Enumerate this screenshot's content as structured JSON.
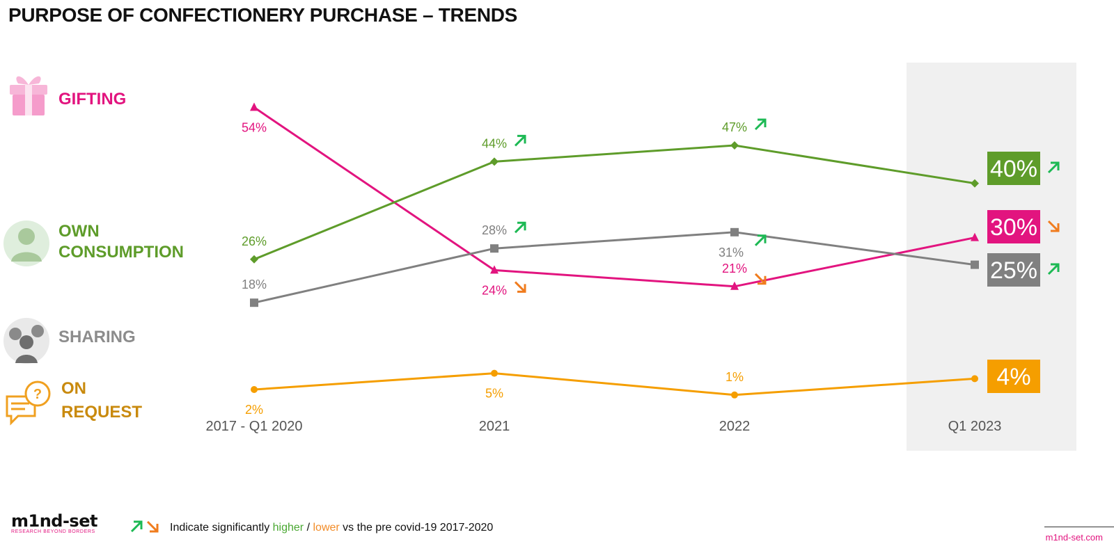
{
  "title": "PURPOSE OF CONFECTIONERY PURCHASE – TRENDS",
  "categories_legend": [
    {
      "line1": "GIFTING",
      "line2": "",
      "icon": "gift-icon",
      "color": "#e2147f"
    },
    {
      "line1": "OWN",
      "line2": "CONSUMPTION",
      "icon": "person-icon",
      "color": "#5e9c2a"
    },
    {
      "line1": "SHARING",
      "line2": "",
      "icon": "group-icon",
      "color": "#8c8c8c"
    },
    {
      "line1": "ON",
      "line2": "REQUEST",
      "icon": "question-speech-icon",
      "color": "#c98a0e"
    }
  ],
  "chart_data": {
    "type": "line",
    "categories": [
      "2017 - Q1 2020",
      "2021",
      "2022",
      "Q1 2023"
    ],
    "highlighted_category": "Q1 2023",
    "series": [
      {
        "name": "GIFTING",
        "color": "#e2147f",
        "marker": "triangle",
        "values": [
          54,
          24,
          21,
          30
        ],
        "labels": [
          "54%",
          "24%",
          "21%",
          "30%"
        ],
        "significance": [
          null,
          "lower",
          "lower",
          "lower"
        ]
      },
      {
        "name": "OWN CONSUMPTION",
        "color": "#5e9c2a",
        "marker": "diamond",
        "values": [
          26,
          44,
          47,
          40
        ],
        "labels": [
          "26%",
          "44%",
          "47%",
          "40%"
        ],
        "significance": [
          null,
          "higher",
          "higher",
          "higher"
        ]
      },
      {
        "name": "SHARING",
        "color": "#808080",
        "marker": "square",
        "values": [
          18,
          28,
          31,
          25
        ],
        "labels": [
          "18%",
          "28%",
          "31%",
          "25%"
        ],
        "significance": [
          null,
          "higher",
          "higher",
          "higher"
        ]
      },
      {
        "name": "ON REQUEST",
        "color": "#f59e00",
        "marker": "circle",
        "values": [
          2,
          5,
          1,
          4
        ],
        "labels": [
          "2%",
          "5%",
          "1%",
          "4%"
        ],
        "significance": [
          null,
          null,
          null,
          null
        ]
      }
    ],
    "colors": {
      "higher": "#1db954",
      "lower": "#f07c1e"
    }
  },
  "footer": {
    "logo": "m1nd-set",
    "logo_tagline": "RESEARCH BEYOND BORDERS",
    "note_prefix": "Indicate significantly",
    "note_higher": "higher",
    "note_sep": "/",
    "note_lower": "lower",
    "note_suffix": "vs the pre covid-19 2017-2020",
    "site": "m1nd-set.com"
  }
}
